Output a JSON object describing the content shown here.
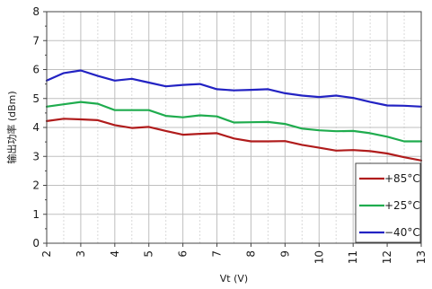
{
  "chart_data": {
    "type": "line",
    "title": "",
    "xlabel": "Vt (V)",
    "ylabel": "输出功率 (dBm)",
    "xlim": [
      2,
      13
    ],
    "ylim": [
      0,
      8
    ],
    "xticks": [
      "2",
      "3",
      "4",
      "5",
      "6",
      "7",
      "8",
      "9",
      "10",
      "11",
      "12",
      "13"
    ],
    "yticks": [
      "0",
      "1",
      "2",
      "3",
      "4",
      "5",
      "6",
      "7",
      "8"
    ],
    "grid": true,
    "legend_position": "bottom-right",
    "x": [
      2,
      2.5,
      3,
      3.5,
      4,
      4.5,
      5,
      5.5,
      6,
      6.5,
      7,
      7.5,
      8,
      8.5,
      9,
      9.5,
      10,
      10.5,
      11,
      11.5,
      12,
      12.5,
      13
    ],
    "series": [
      {
        "name": "+85°C",
        "color": "#b01c1c",
        "values": [
          4.22,
          4.3,
          4.28,
          4.25,
          4.08,
          3.98,
          4.02,
          3.88,
          3.75,
          3.78,
          3.8,
          3.62,
          3.52,
          3.52,
          3.53,
          3.4,
          3.3,
          3.2,
          3.22,
          3.18,
          3.1,
          2.97,
          2.86
        ]
      },
      {
        "name": "+25°C",
        "color": "#1fac4e",
        "values": [
          4.72,
          4.8,
          4.88,
          4.82,
          4.6,
          4.6,
          4.6,
          4.4,
          4.35,
          4.42,
          4.38,
          4.17,
          4.18,
          4.19,
          4.12,
          3.96,
          3.9,
          3.87,
          3.88,
          3.8,
          3.68,
          3.52,
          3.52
        ]
      },
      {
        "name": "−40°C",
        "color": "#2323c3",
        "values": [
          5.62,
          5.88,
          5.97,
          5.78,
          5.62,
          5.68,
          5.55,
          5.42,
          5.47,
          5.5,
          5.32,
          5.28,
          5.3,
          5.32,
          5.18,
          5.1,
          5.05,
          5.1,
          5.02,
          4.88,
          4.76,
          4.75,
          4.72
        ]
      }
    ]
  }
}
